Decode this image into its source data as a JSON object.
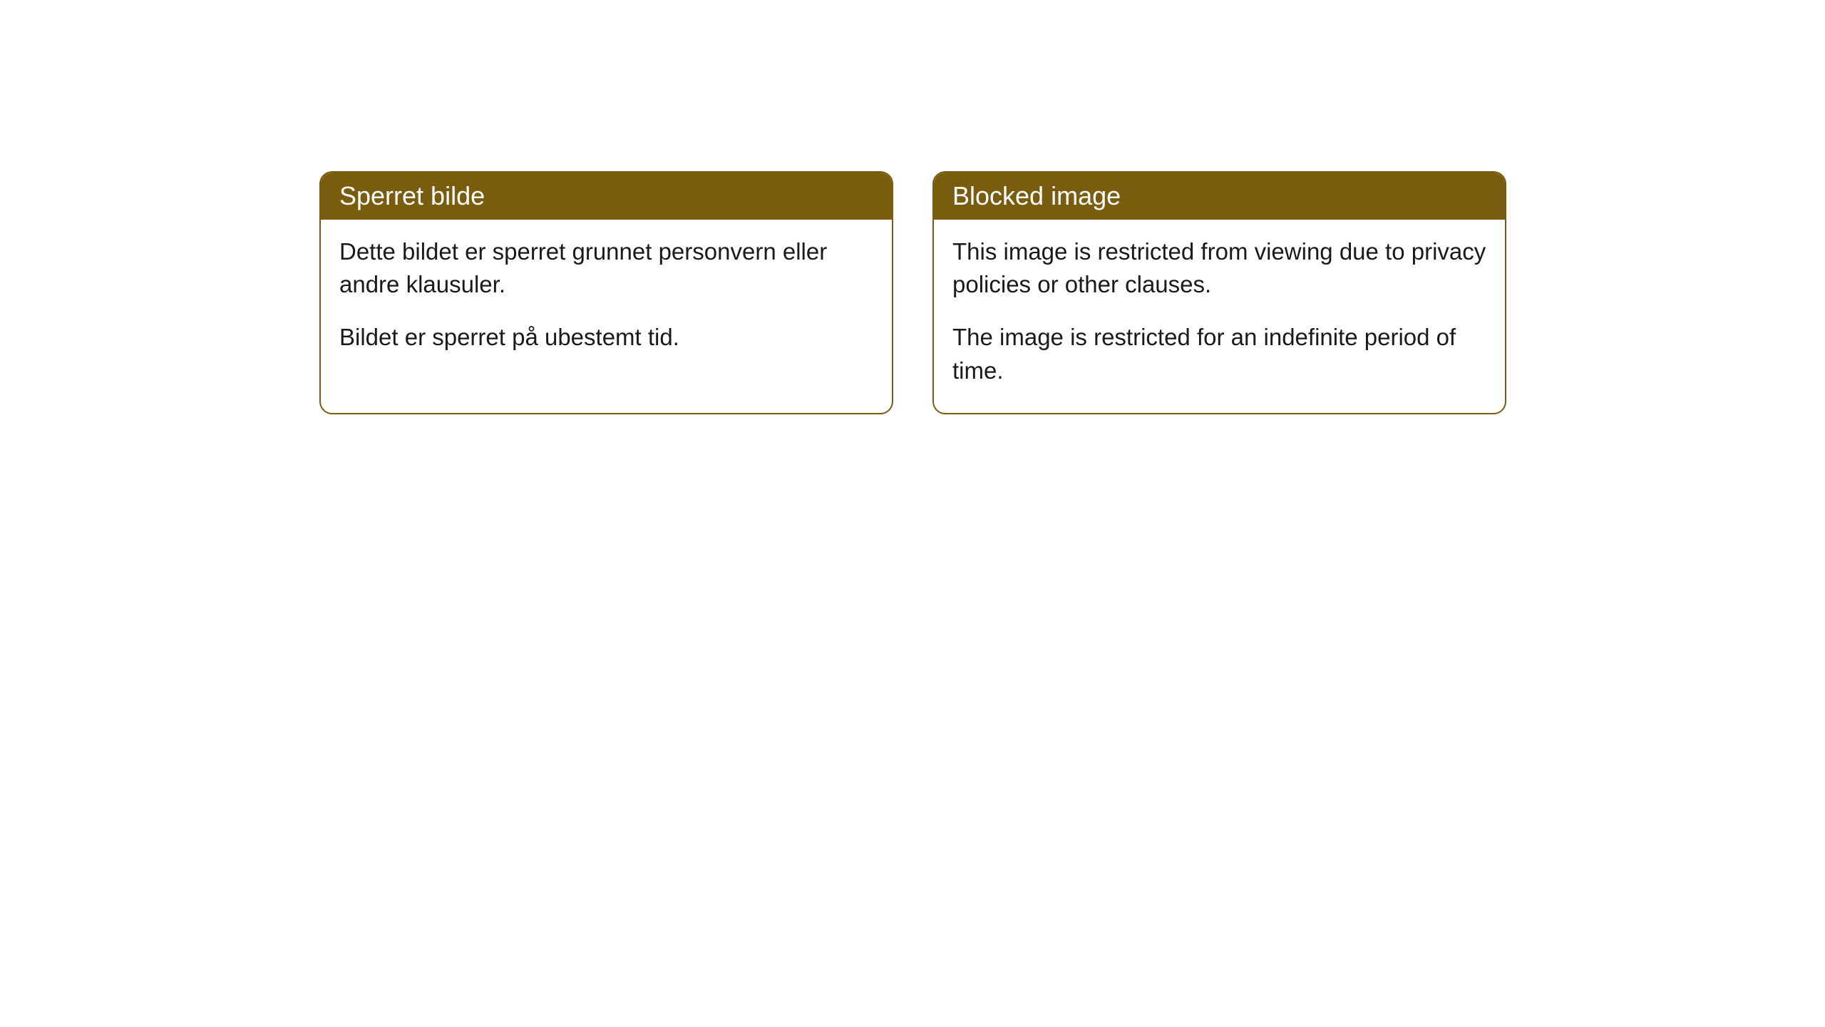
{
  "cards": [
    {
      "title": "Sperret bilde",
      "paragraph1": "Dette bildet er sperret grunnet personvern eller andre klausuler.",
      "paragraph2": "Bildet er sperret på ubestemt tid."
    },
    {
      "title": "Blocked image",
      "paragraph1": "This image is restricted from viewing due to privacy policies or other clauses.",
      "paragraph2": "The image is restricted for an indefinite period of time."
    }
  ],
  "style": {
    "header_bg_color": "#7a5c0f",
    "header_text_color": "#ffffff",
    "border_color": "#7a5c0f",
    "body_text_color": "#1a1a1a",
    "card_bg_color": "#ffffff",
    "page_bg_color": "#ffffff",
    "border_radius": 18,
    "header_fontsize": 36,
    "body_fontsize": 33
  }
}
